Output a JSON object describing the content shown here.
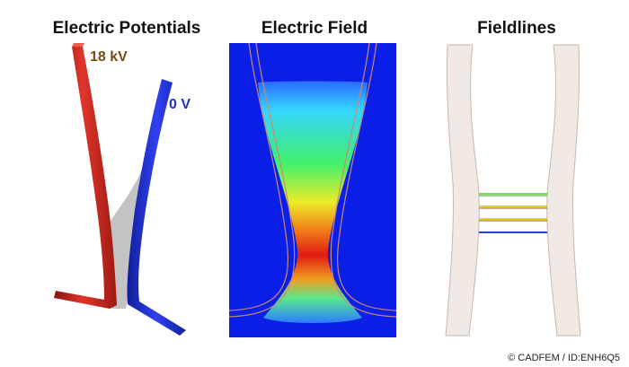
{
  "panels": {
    "potentials": {
      "title": "Electric Potentials",
      "label_high": "18 kV",
      "label_low": "0 V",
      "colors": {
        "high": "#d2241a",
        "low": "#1f2fd8",
        "gap": "#b9b9b9"
      }
    },
    "field": {
      "title": "Electric Field",
      "colors": {
        "background": "#0a1ee8",
        "scale": [
          "#2d6bff",
          "#35d6ff",
          "#41f06a",
          "#ecec2a",
          "#f07a18",
          "#e01a12"
        ]
      }
    },
    "fieldlines": {
      "title": "Fieldlines",
      "colors": {
        "conductor": "#f1e9e4",
        "outline": "#c8b7ae"
      }
    }
  },
  "copyright": "© CADFEM / ID:ENH6Q5"
}
